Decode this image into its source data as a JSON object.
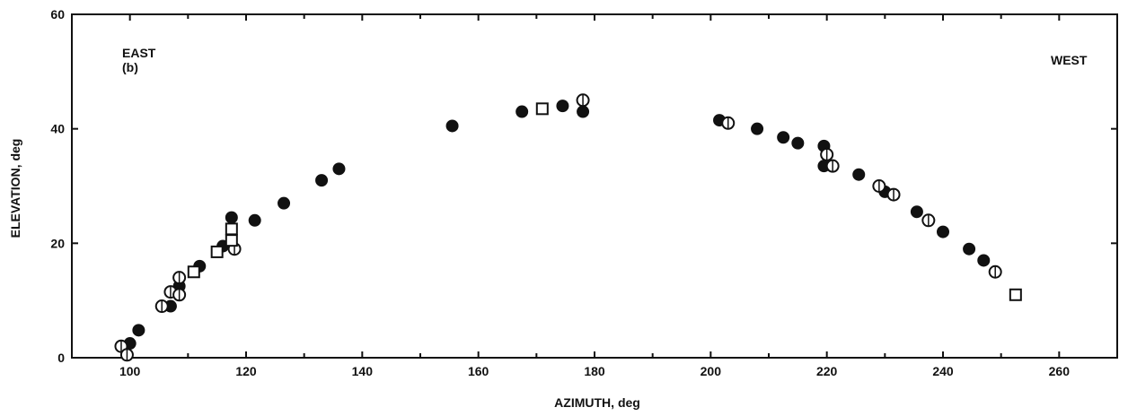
{
  "chart_data": {
    "type": "scatter",
    "xlabel": "AZIMUTH, deg",
    "ylabel": "ELEVATION, deg",
    "xlim": [
      90,
      270
    ],
    "ylim": [
      0,
      60
    ],
    "x_ticks": [
      "100",
      "120",
      "140",
      "160",
      "180",
      "200",
      "220",
      "240",
      "260"
    ],
    "y_ticks": [
      "0",
      "20",
      "40",
      "60"
    ],
    "grid": false,
    "annotations": {
      "east": "EAST",
      "east_sub": "(b)",
      "west": "WEST"
    },
    "series": [
      {
        "marker": "filled-circle",
        "points": [
          [
            100,
            2.5
          ],
          [
            101.5,
            4.8
          ],
          [
            107,
            9
          ],
          [
            108.5,
            12.5
          ],
          [
            112,
            16
          ],
          [
            116,
            19.5
          ],
          [
            117.5,
            24.5
          ],
          [
            121.5,
            24
          ],
          [
            126.5,
            27
          ],
          [
            133,
            31
          ],
          [
            136,
            33
          ],
          [
            155.5,
            40.5
          ],
          [
            167.5,
            43
          ],
          [
            174.5,
            44
          ],
          [
            178,
            43
          ],
          [
            201.5,
            41.5
          ],
          [
            208,
            40
          ],
          [
            212.5,
            38.5
          ],
          [
            215,
            37.5
          ],
          [
            219.5,
            37
          ],
          [
            219.5,
            33.5
          ],
          [
            225.5,
            32
          ],
          [
            230,
            29
          ],
          [
            235.5,
            25.5
          ],
          [
            240,
            22
          ],
          [
            244.5,
            19
          ],
          [
            247,
            17
          ]
        ]
      },
      {
        "marker": "open-circle",
        "points": [
          [
            98.5,
            2
          ],
          [
            99.5,
            0.5
          ],
          [
            105.5,
            9
          ],
          [
            107,
            11.5
          ],
          [
            108.5,
            14
          ],
          [
            108.5,
            11
          ],
          [
            118,
            19
          ],
          [
            178,
            45
          ],
          [
            203,
            41
          ],
          [
            220,
            35.5
          ],
          [
            221,
            33.5
          ],
          [
            229,
            30
          ],
          [
            231.5,
            28.5
          ],
          [
            237.5,
            24
          ],
          [
            249,
            15
          ]
        ]
      },
      {
        "marker": "open-square",
        "points": [
          [
            111,
            15
          ],
          [
            115,
            18.5
          ],
          [
            117.5,
            20.5
          ],
          [
            117.5,
            22.5
          ],
          [
            171,
            43.5
          ],
          [
            252.5,
            11
          ]
        ]
      }
    ]
  }
}
